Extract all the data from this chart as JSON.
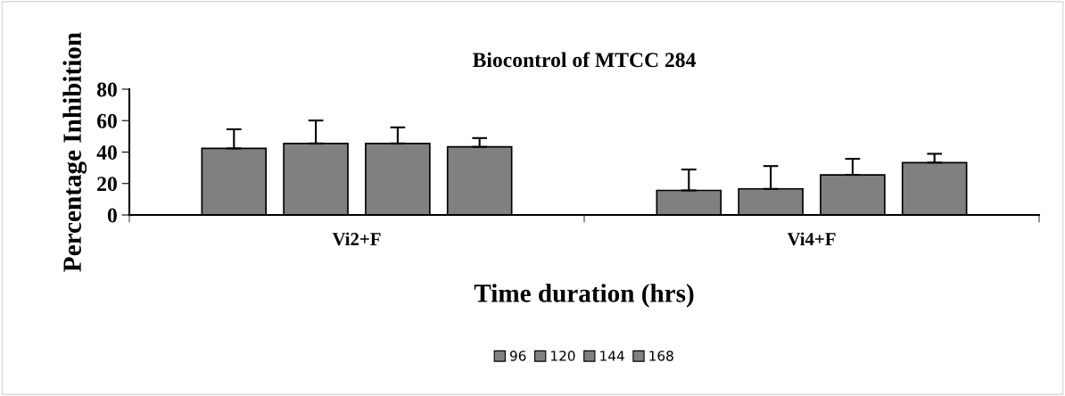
{
  "chart_data": {
    "type": "bar",
    "title": "Biocontrol of MTCC 284",
    "xlabel": "Time duration (hrs)",
    "ylabel": "Percentage Inhibition",
    "categories": [
      "Vi2+F",
      "Vi4+F"
    ],
    "series": [
      {
        "name": "96",
        "color": "#808080",
        "values": [
          42.3,
          15.6
        ],
        "errors": [
          [
            42.3,
            54.5
          ],
          [
            15.6,
            28.9
          ]
        ]
      },
      {
        "name": "120",
        "color": "#808080",
        "values": [
          45.5,
          16.6
        ],
        "errors": [
          [
            45.5,
            60.1
          ],
          [
            16.6,
            31.1
          ]
        ]
      },
      {
        "name": "144",
        "color": "#808080",
        "values": [
          45.5,
          25.5
        ],
        "errors": [
          [
            45.5,
            55.7
          ],
          [
            25.5,
            35.7
          ]
        ]
      },
      {
        "name": "168",
        "color": "#808080",
        "values": [
          43.3,
          33.3
        ],
        "errors": [
          [
            43.3,
            48.9
          ],
          [
            33.3,
            38.9
          ]
        ]
      }
    ],
    "ylim": [
      0,
      80
    ],
    "yticks": [
      0,
      20,
      40,
      60,
      80
    ],
    "grid": false,
    "legend": "bottom"
  }
}
